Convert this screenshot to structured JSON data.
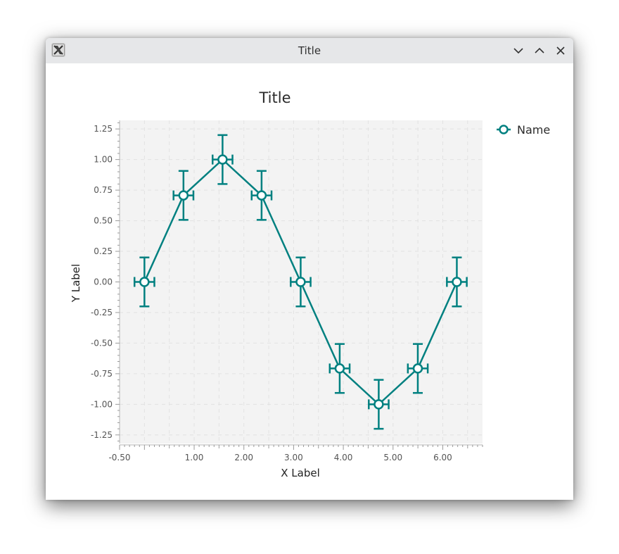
{
  "window": {
    "title": "Title",
    "app_icon": "x-app-icon",
    "controls": [
      "minimize-icon",
      "maximize-icon",
      "close-icon"
    ]
  },
  "chart_data": {
    "type": "line",
    "title": "Title",
    "xlabel": "X Label",
    "ylabel": "Y Label",
    "xlim": [
      -0.5,
      6.8
    ],
    "ylim": [
      -1.32,
      1.32
    ],
    "x_ticks": [
      -0.5,
      1.0,
      2.0,
      3.0,
      4.0,
      5.0,
      6.0
    ],
    "x_tick_labels": [
      "-0.50",
      "1.00",
      "2.00",
      "3.00",
      "4.00",
      "5.00",
      "6.00"
    ],
    "y_ticks": [
      1.25,
      1.0,
      0.75,
      0.5,
      0.25,
      0.0,
      -0.25,
      -0.5,
      -0.75,
      -1.0,
      -1.25
    ],
    "y_tick_labels": [
      "1.25",
      "1.00",
      "0.75",
      "0.50",
      "0.25",
      "0.00",
      "-0.25",
      "-0.50",
      "-0.75",
      "-1.00",
      "-1.25"
    ],
    "grid": true,
    "legend_position": "right",
    "series": [
      {
        "name": "Name",
        "color": "#008080",
        "x": [
          0.0,
          0.785,
          1.571,
          2.356,
          3.142,
          3.927,
          4.712,
          5.498,
          6.283
        ],
        "y": [
          0.0,
          0.707,
          1.0,
          0.707,
          0.0,
          -0.707,
          -1.0,
          -0.707,
          0.0
        ],
        "x_error": 0.2,
        "y_error": 0.2
      }
    ],
    "plot_background": "#f3f3f3",
    "grid_color": "#e2e2e2"
  }
}
